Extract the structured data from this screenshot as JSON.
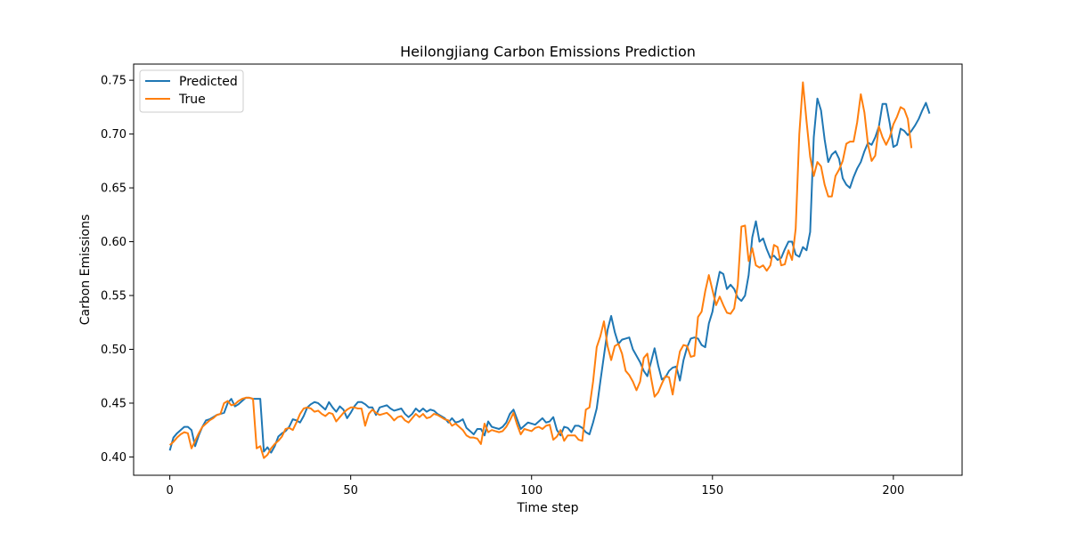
{
  "chart_data": {
    "type": "line",
    "title": "Heilongjiang Carbon Emissions Prediction",
    "xlabel": "Time step",
    "ylabel": "Carbon Emissions",
    "xlim": [
      -10,
      219
    ],
    "ylim": [
      0.383,
      0.765
    ],
    "x_ticks": [
      0,
      50,
      100,
      150,
      200
    ],
    "y_ticks": [
      0.4,
      0.45,
      0.5,
      0.55,
      0.6,
      0.65,
      0.7,
      0.75
    ],
    "y_tick_labels": [
      "0.40",
      "0.45",
      "0.50",
      "0.55",
      "0.60",
      "0.65",
      "0.70",
      "0.75"
    ],
    "grid": false,
    "legend_position": "upper-left",
    "series": [
      {
        "name": "Predicted",
        "color": "#1f77b4",
        "values": [
          0.406,
          0.418,
          0.422,
          0.425,
          0.428,
          0.428,
          0.425,
          0.41,
          0.42,
          0.428,
          0.434,
          0.435,
          0.437,
          0.439,
          0.44,
          0.441,
          0.45,
          0.454,
          0.447,
          0.449,
          0.452,
          0.455,
          0.455,
          0.454,
          0.454,
          0.454,
          0.405,
          0.409,
          0.404,
          0.41,
          0.419,
          0.422,
          0.424,
          0.428,
          0.435,
          0.434,
          0.432,
          0.438,
          0.446,
          0.449,
          0.451,
          0.45,
          0.447,
          0.444,
          0.451,
          0.446,
          0.442,
          0.447,
          0.444,
          0.436,
          0.441,
          0.447,
          0.451,
          0.451,
          0.449,
          0.446,
          0.446,
          0.439,
          0.446,
          0.447,
          0.448,
          0.445,
          0.443,
          0.444,
          0.445,
          0.44,
          0.437,
          0.44,
          0.445,
          0.442,
          0.445,
          0.442,
          0.444,
          0.443,
          0.44,
          0.438,
          0.436,
          0.432,
          0.436,
          0.432,
          0.433,
          0.435,
          0.427,
          0.424,
          0.421,
          0.426,
          0.426,
          0.42,
          0.433,
          0.428,
          0.427,
          0.426,
          0.428,
          0.432,
          0.44,
          0.444,
          0.435,
          0.426,
          0.429,
          0.432,
          0.431,
          0.43,
          0.433,
          0.436,
          0.432,
          0.433,
          0.437,
          0.425,
          0.42,
          0.428,
          0.427,
          0.423,
          0.429,
          0.429,
          0.427,
          0.423,
          0.421,
          0.432,
          0.445,
          0.47,
          0.494,
          0.518,
          0.531,
          0.516,
          0.505,
          0.509,
          0.51,
          0.511,
          0.5,
          0.494,
          0.488,
          0.48,
          0.475,
          0.488,
          0.501,
          0.485,
          0.472,
          0.474,
          0.48,
          0.483,
          0.484,
          0.471,
          0.49,
          0.502,
          0.51,
          0.511,
          0.51,
          0.504,
          0.502,
          0.524,
          0.535,
          0.556,
          0.572,
          0.57,
          0.556,
          0.56,
          0.556,
          0.548,
          0.545,
          0.55,
          0.569,
          0.604,
          0.619,
          0.6,
          0.603,
          0.593,
          0.585,
          0.587,
          0.583,
          0.585,
          0.593,
          0.6,
          0.6,
          0.588,
          0.586,
          0.595,
          0.592,
          0.609,
          0.697,
          0.733,
          0.722,
          0.695,
          0.674,
          0.681,
          0.684,
          0.677,
          0.659,
          0.653,
          0.65,
          0.66,
          0.668,
          0.674,
          0.684,
          0.692,
          0.69,
          0.697,
          0.707,
          0.728,
          0.728,
          0.71,
          0.688,
          0.69,
          0.705,
          0.703,
          0.699,
          0.703,
          0.708,
          0.714,
          0.722,
          0.729,
          0.719
        ]
      },
      {
        "name": "True",
        "color": "#ff7f0e",
        "values": [
          0.411,
          0.414,
          0.418,
          0.421,
          0.423,
          0.422,
          0.408,
          0.415,
          0.422,
          0.428,
          0.431,
          0.434,
          0.436,
          0.439,
          0.44,
          0.45,
          0.452,
          0.448,
          0.449,
          0.452,
          0.454,
          0.455,
          0.455,
          0.454,
          0.408,
          0.41,
          0.399,
          0.402,
          0.408,
          0.412,
          0.415,
          0.419,
          0.426,
          0.427,
          0.425,
          0.432,
          0.44,
          0.445,
          0.446,
          0.445,
          0.442,
          0.443,
          0.44,
          0.438,
          0.441,
          0.44,
          0.433,
          0.437,
          0.441,
          0.444,
          0.446,
          0.446,
          0.445,
          0.445,
          0.429,
          0.44,
          0.444,
          0.441,
          0.439,
          0.44,
          0.441,
          0.438,
          0.434,
          0.437,
          0.438,
          0.434,
          0.432,
          0.436,
          0.44,
          0.437,
          0.44,
          0.436,
          0.437,
          0.44,
          0.439,
          0.437,
          0.435,
          0.434,
          0.429,
          0.431,
          0.428,
          0.425,
          0.42,
          0.418,
          0.418,
          0.417,
          0.412,
          0.431,
          0.423,
          0.425,
          0.424,
          0.423,
          0.424,
          0.428,
          0.434,
          0.441,
          0.43,
          0.421,
          0.426,
          0.425,
          0.424,
          0.427,
          0.428,
          0.426,
          0.429,
          0.43,
          0.416,
          0.419,
          0.425,
          0.415,
          0.42,
          0.42,
          0.42,
          0.416,
          0.415,
          0.444,
          0.446,
          0.47,
          0.502,
          0.512,
          0.526,
          0.503,
          0.49,
          0.503,
          0.505,
          0.496,
          0.48,
          0.476,
          0.47,
          0.462,
          0.47,
          0.492,
          0.496,
          0.474,
          0.456,
          0.46,
          0.468,
          0.475,
          0.474,
          0.458,
          0.48,
          0.498,
          0.504,
          0.503,
          0.493,
          0.494,
          0.53,
          0.535,
          0.554,
          0.569,
          0.555,
          0.541,
          0.549,
          0.541,
          0.534,
          0.533,
          0.538,
          0.56,
          0.614,
          0.615,
          0.582,
          0.594,
          0.578,
          0.576,
          0.578,
          0.573,
          0.578,
          0.597,
          0.595,
          0.578,
          0.579,
          0.592,
          0.583,
          0.612,
          0.7,
          0.748,
          0.712,
          0.679,
          0.661,
          0.674,
          0.67,
          0.653,
          0.642,
          0.642,
          0.661,
          0.667,
          0.675,
          0.691,
          0.693,
          0.693,
          0.711,
          0.737,
          0.72,
          0.69,
          0.675,
          0.68,
          0.707,
          0.697,
          0.69,
          0.697,
          0.709,
          0.716,
          0.725,
          0.723,
          0.714,
          0.687
        ]
      }
    ]
  }
}
